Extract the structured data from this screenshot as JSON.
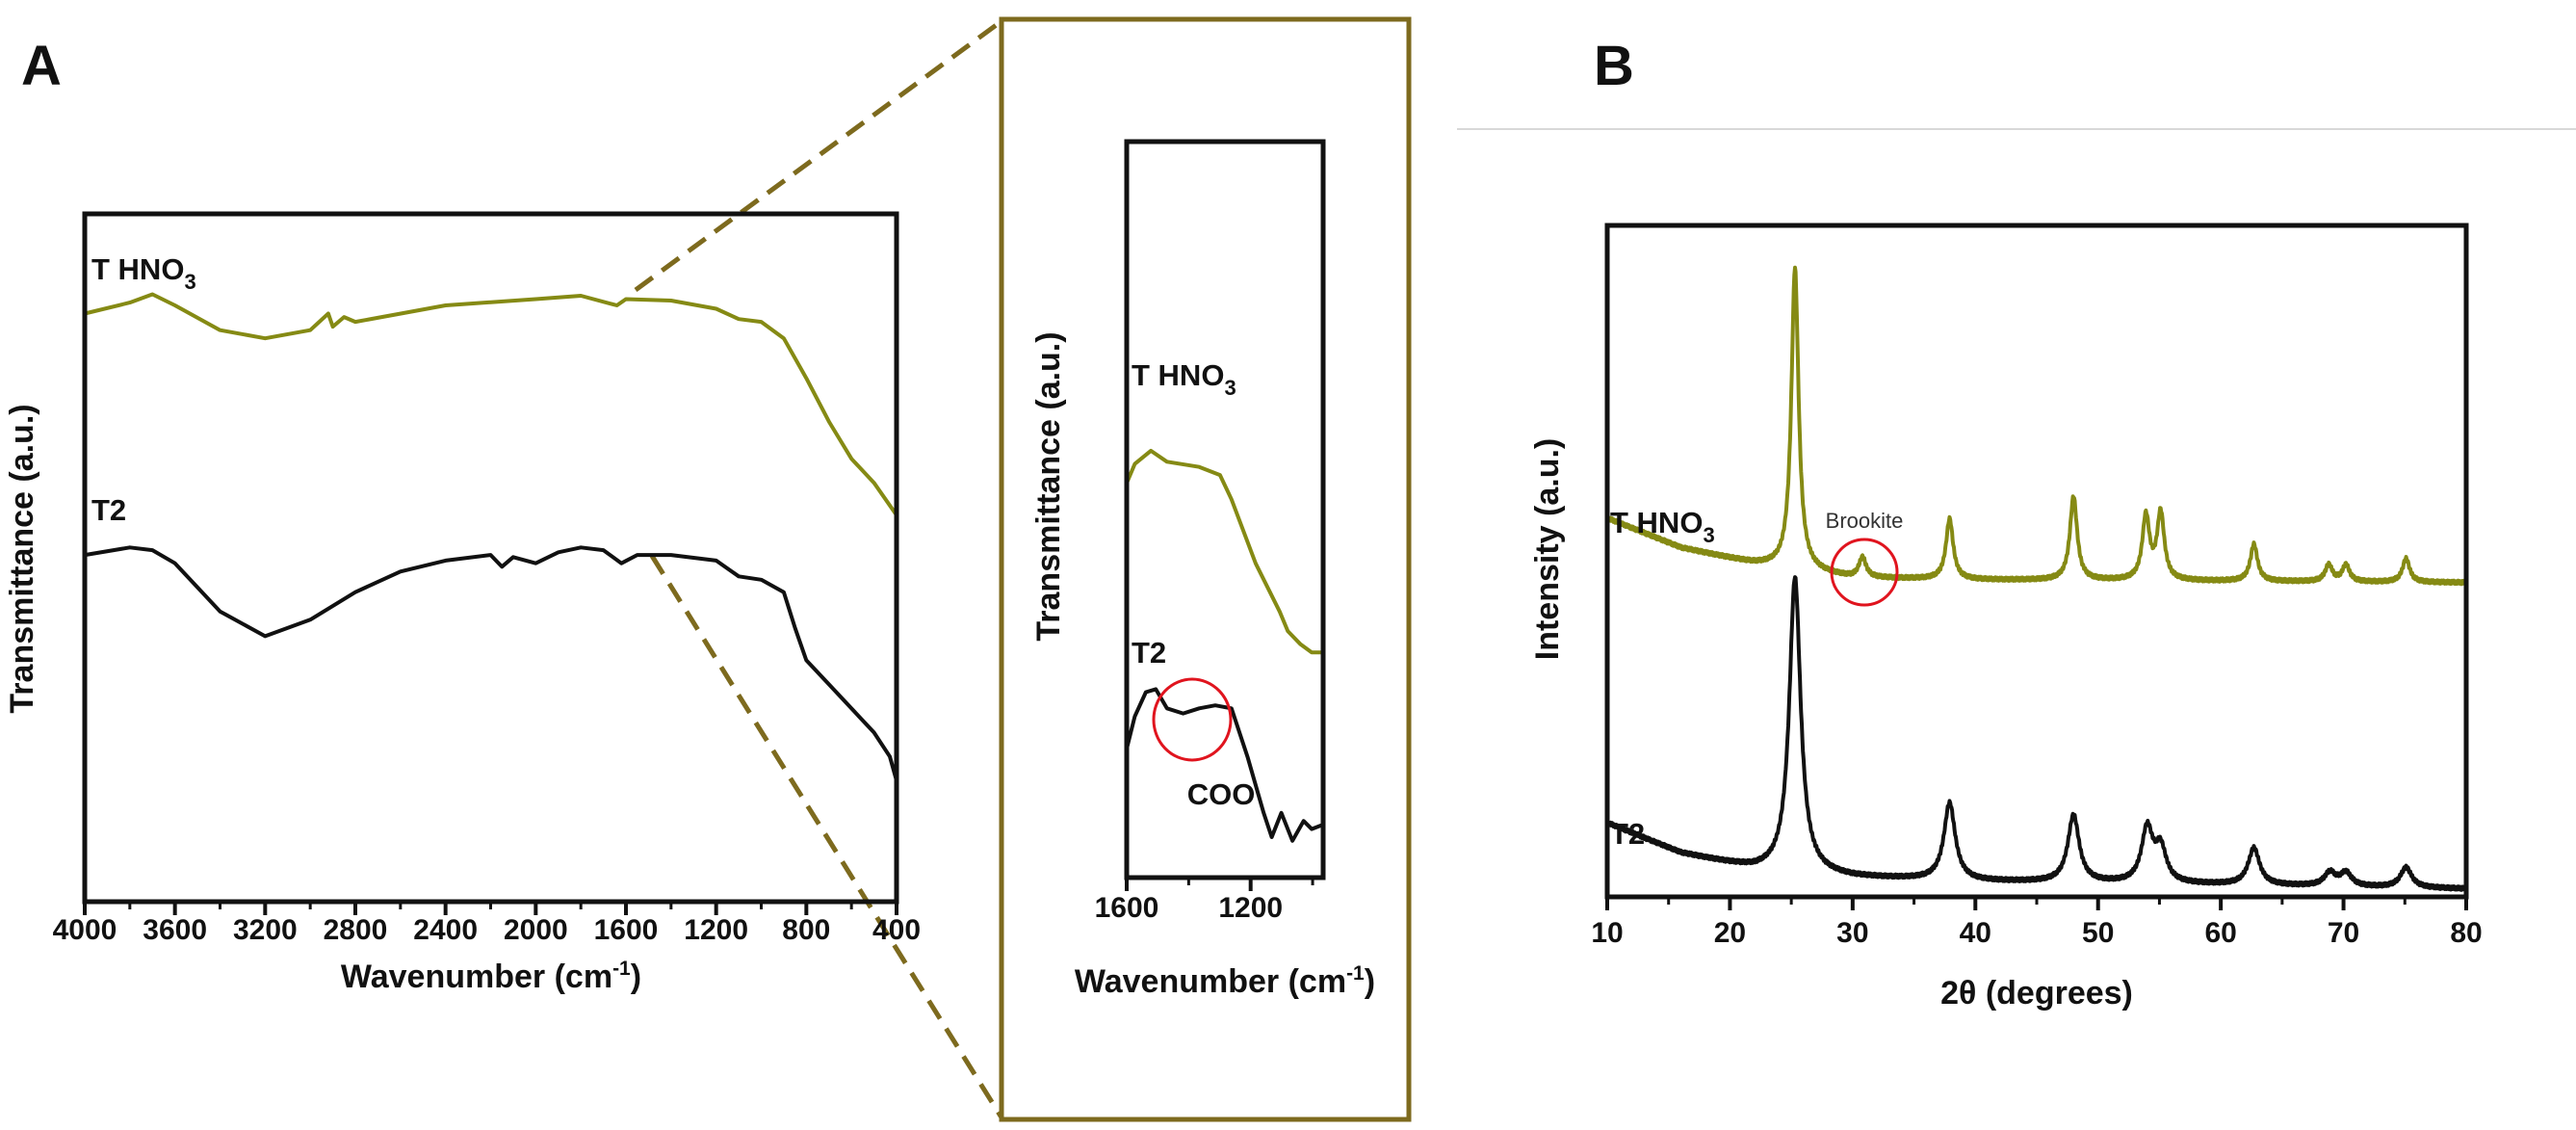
{
  "colors": {
    "olive": "#858a14",
    "black": "#111111",
    "zoom_frame": "#7d6a1e",
    "highlight": "#e0141e",
    "divider": "#d8d8d8"
  },
  "chart_data": [
    {
      "id": "A",
      "panel_label": "A",
      "type": "line",
      "xlabel": "Wavenumber (cm",
      "xlabel_sup": "-1",
      "xlabel_end": ")",
      "ylabel": "Transmittance (a.u.)",
      "xlim": [
        4000,
        400
      ],
      "ylim": [
        0,
        100
      ],
      "xticks": [
        "4000",
        "3600",
        "3200",
        "2800",
        "2400",
        "2000",
        "1600",
        "1200",
        "800",
        "400"
      ],
      "grid": false,
      "series": [
        {
          "name": "T HNO",
          "sub": "3",
          "color_key": "olive",
          "x": [
            4000,
            3800,
            3700,
            3600,
            3400,
            3200,
            3000,
            2920,
            2900,
            2850,
            2800,
            2400,
            2000,
            1800,
            1640,
            1600,
            1400,
            1200,
            1100,
            1000,
            900,
            800,
            700,
            600,
            500,
            400
          ],
          "y": [
            85.5,
            87.1,
            88.3,
            86.7,
            83.1,
            81.9,
            83.1,
            85.5,
            83.6,
            85.0,
            84.3,
            86.7,
            87.6,
            88.1,
            86.7,
            87.6,
            87.4,
            86.2,
            84.7,
            84.3,
            81.9,
            76.1,
            69.8,
            64.4,
            60.9,
            56.2
          ]
        },
        {
          "name": "T2",
          "sub": "",
          "color_key": "black",
          "x": [
            4000,
            3800,
            3700,
            3600,
            3400,
            3200,
            3000,
            2800,
            2600,
            2400,
            2200,
            2150,
            2100,
            2000,
            1900,
            1800,
            1700,
            1620,
            1550,
            1400,
            1200,
            1100,
            1000,
            900,
            850,
            800,
            700,
            600,
            500,
            430,
            400
          ],
          "y": [
            50.4,
            51.5,
            51.1,
            49.2,
            42.2,
            38.6,
            41.0,
            45.0,
            48.0,
            49.6,
            50.4,
            48.7,
            50.1,
            49.2,
            50.8,
            51.5,
            51.1,
            49.2,
            50.4,
            50.4,
            49.6,
            47.3,
            46.8,
            45.0,
            39.8,
            35.1,
            31.6,
            28.1,
            24.6,
            21.1,
            17.6
          ]
        }
      ]
    },
    {
      "id": "A-inset",
      "type": "line",
      "xlabel": "Wavenumber (cm",
      "xlabel_sup": "-1",
      "xlabel_end": ")",
      "ylabel": "Transmittance (a.u.)",
      "xlim": [
        1600,
        966
      ],
      "ylim": [
        0,
        100
      ],
      "xticks": [
        "1600",
        "1200"
      ],
      "annotation": "COO",
      "series": [
        {
          "name": "T HNO",
          "sub": "3",
          "color_key": "olive",
          "x": [
            1600,
            1574,
            1522,
            1470,
            1366,
            1299,
            1262,
            1184,
            1106,
            1080,
            1039,
            1003,
            966
          ],
          "y": [
            53.6,
            56.2,
            58.0,
            56.5,
            55.8,
            54.7,
            51.4,
            42.7,
            36.1,
            33.5,
            31.7,
            30.6,
            30.6
          ]
        },
        {
          "name": "T2",
          "sub": "",
          "color_key": "black",
          "x": [
            1600,
            1574,
            1538,
            1506,
            1470,
            1418,
            1366,
            1314,
            1262,
            1210,
            1158,
            1132,
            1101,
            1065,
            1029,
            1003,
            966
          ],
          "y": [
            17.5,
            21.9,
            25.2,
            25.6,
            23.0,
            22.3,
            23.0,
            23.4,
            23.0,
            16.4,
            8.8,
            5.5,
            8.8,
            5.0,
            7.7,
            6.6,
            7.2
          ]
        }
      ]
    },
    {
      "id": "B",
      "panel_label": "B",
      "type": "line",
      "xlabel": "2θ (degrees)",
      "ylabel": "Intensity (a.u.)",
      "xlim": [
        10,
        80
      ],
      "ylim": [
        0,
        100
      ],
      "xticks": [
        "10",
        "20",
        "30",
        "40",
        "50",
        "60",
        "70",
        "80"
      ],
      "annotation": "Brookite",
      "series": [
        {
          "name": "T HNO",
          "sub": "3",
          "color_key": "olive",
          "fwhm": 0.7,
          "baseline": {
            "x": [
              10,
              16,
              22,
              30,
              40,
              60,
              80
            ],
            "y": [
              56.4,
              52.0,
              49.6,
              47.5,
              47.2,
              47.0,
              46.8
            ]
          },
          "peaks": {
            "pos": [
              25.3,
              30.8,
              37.9,
              48.0,
              53.9,
              55.1,
              62.7,
              68.8,
              70.2,
              75.1
            ],
            "height": [
              45,
              3,
              9,
              12.5,
              9.5,
              10,
              5.5,
              2.5,
              2.5,
              3.5
            ]
          }
        },
        {
          "name": "T2",
          "sub": "",
          "color_key": "black",
          "fwhm": 1.1,
          "baseline": {
            "x": [
              10,
              16,
              22,
              30,
              40,
              60,
              80
            ],
            "y": [
              11.0,
              6.5,
              4.1,
              2.9,
              2.3,
              1.8,
              1.2
            ]
          },
          "peaks": {
            "pos": [
              25.3,
              37.9,
              48.0,
              54.0,
              55.1,
              62.7,
              68.9,
              70.2,
              75.1
            ],
            "height": [
              44,
              11.5,
              10,
              8,
              5,
              5.5,
              2,
              2,
              3
            ]
          }
        }
      ]
    }
  ]
}
